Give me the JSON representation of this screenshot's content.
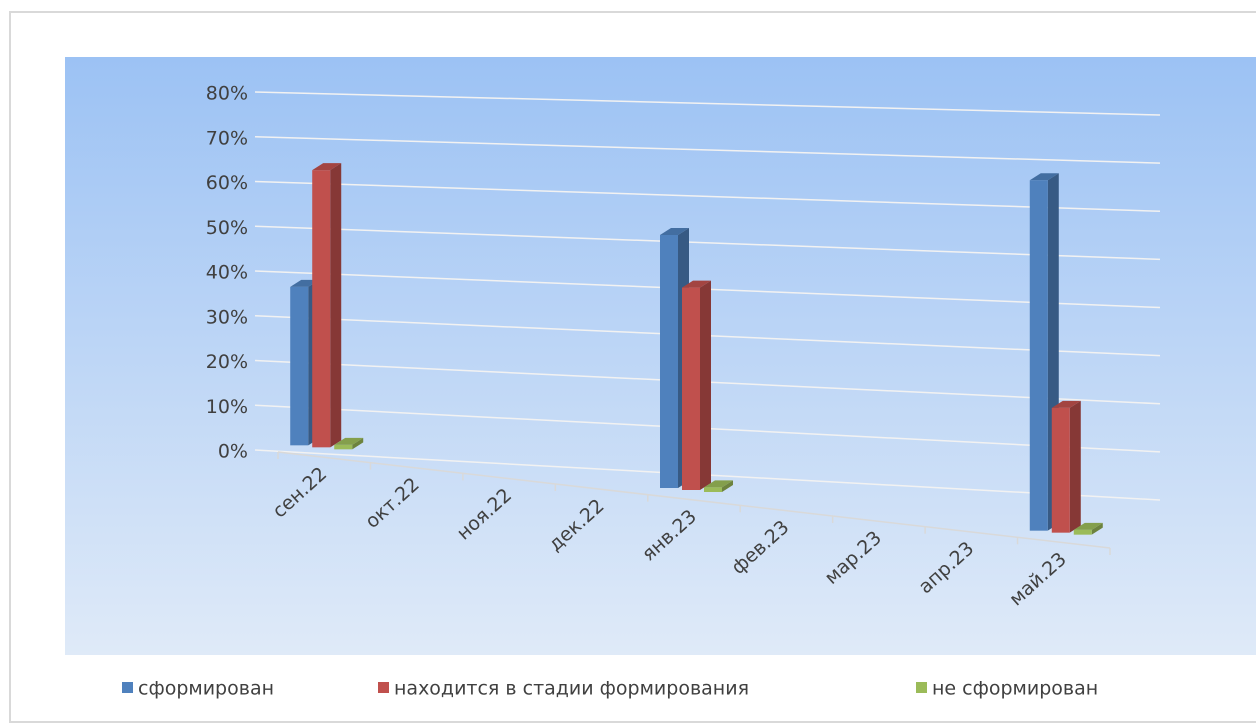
{
  "chart_data": {
    "type": "bar3d",
    "categories": [
      "сен.22",
      "окт.22",
      "ноя.22",
      "дек.22",
      "янв.23",
      "фев.23",
      "мар.23",
      "апр.23",
      "май.23"
    ],
    "series": [
      {
        "name": "сформирован",
        "color": "#4f81bd",
        "values": [
          36,
          null,
          null,
          null,
          55,
          null,
          null,
          null,
          73
        ]
      },
      {
        "name": "находится в стадии формирования",
        "color": "#c0504d",
        "values": [
          63,
          null,
          null,
          null,
          44,
          null,
          null,
          null,
          26
        ]
      },
      {
        "name": "не сформирован",
        "color": "#9bbb59",
        "values": [
          1,
          null,
          null,
          null,
          1,
          null,
          null,
          null,
          1
        ]
      }
    ],
    "ylim": [
      0,
      80
    ],
    "yticks": [
      {
        "value": 0,
        "label": "0%"
      },
      {
        "value": 10,
        "label": "10%"
      },
      {
        "value": 20,
        "label": "20%"
      },
      {
        "value": 30,
        "label": "30%"
      },
      {
        "value": 40,
        "label": "40%"
      },
      {
        "value": 50,
        "label": "50%"
      },
      {
        "value": 60,
        "label": "60%"
      },
      {
        "value": 70,
        "label": "70%"
      },
      {
        "value": 80,
        "label": "80%"
      }
    ],
    "grid": true,
    "legend": "bottom"
  }
}
